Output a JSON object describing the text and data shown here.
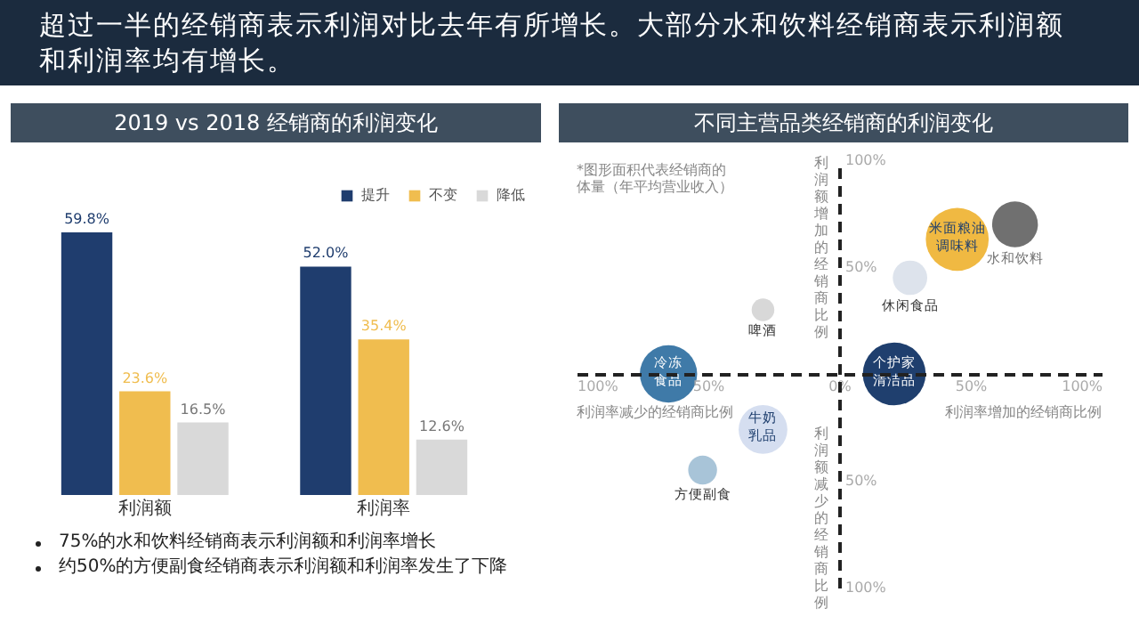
{
  "chart_data": [
    {
      "type": "other",
      "title": "超过一半的经销商表示利润对比去年有所增长。大部分水和饮料经销商表示利润额和利润率均有增长。"
    },
    {
      "type": "bar",
      "title": "2019 vs 2018 经销商的利润变化",
      "categories": [
        "利润额",
        "利润率"
      ],
      "legend": "top right",
      "tick_labels": "x",
      "series": [
        {
          "name": "提升",
          "color": "#1f3d6e",
          "values": [
            59.8,
            52.0
          ],
          "value_labels": [
            "59.8%",
            "52.0%"
          ]
        },
        {
          "name": "不变",
          "color": "#f0bd4f",
          "values": [
            23.6,
            35.4
          ],
          "value_labels": [
            "23.6%",
            "35.4%"
          ]
        },
        {
          "name": "降低",
          "color": "#d9d9d9",
          "values": [
            16.5,
            12.6
          ],
          "value_labels": [
            "16.5%",
            "12.6%"
          ]
        }
      ],
      "annotations": [
        "75%的水和饮料经销商表示利润额和利润率增长",
        "约50%的方便副食经销商表示利润额和利润率发生了下降"
      ]
    },
    {
      "type": "bubble",
      "title": "不同主营品类经销商的利润变化",
      "xlabel": "利润率增加的经销商比例",
      "ylabel": "利润额增加的经销商比例",
      "xlim": [
        -100,
        100
      ],
      "ylim": [
        -100,
        100
      ],
      "xticks": [
        {
          "value": -100,
          "label": "100%"
        },
        {
          "value": -50,
          "label": "50%"
        },
        {
          "value": 0,
          "label": "0%"
        },
        {
          "value": 50,
          "label": "50%"
        },
        {
          "value": 100,
          "label": "100%"
        }
      ],
      "yticks": [
        {
          "value": -100,
          "label": "100%"
        },
        {
          "value": -50,
          "label": "50%"
        },
        {
          "value": 50,
          "label": "50%"
        },
        {
          "value": 100,
          "label": "100%"
        }
      ],
      "series": [
        {
          "name": "水和饮料",
          "color": "#707070",
          "x": [
            67
          ],
          "values": [
            70
          ],
          "sizes": [
            0.53
          ]
        },
        {
          "name": "米面粮油调味料",
          "color": "#f0b942",
          "x": [
            45
          ],
          "values": [
            63
          ],
          "sizes": [
            1
          ]
        },
        {
          "name": "休闲食品",
          "color": "#dde3ec",
          "x": [
            27
          ],
          "values": [
            45
          ],
          "sizes": [
            0.3
          ]
        },
        {
          "name": "啤酒",
          "color": "#d8d8d8",
          "x": [
            -29
          ],
          "values": [
            30
          ],
          "sizes": [
            0.13
          ]
        },
        {
          "name": "冷冻食品",
          "color": "#3f7aa8",
          "x": [
            -65
          ],
          "values": [
            0
          ],
          "sizes": [
            0.83
          ]
        },
        {
          "name": "个护家清洁品",
          "color": "#1f3f6e",
          "x": [
            21
          ],
          "values": [
            0
          ],
          "sizes": [
            1
          ]
        },
        {
          "name": "牛奶乳品",
          "color": "#d5def0",
          "x": [
            -29
          ],
          "values": [
            -26
          ],
          "sizes": [
            0.6
          ]
        },
        {
          "name": "方便副食",
          "color": "#a8c4d8",
          "x": [
            -52
          ],
          "values": [
            -45
          ],
          "sizes": [
            0.21
          ]
        }
      ],
      "annotations": [
        "利润率减少的经销商比例",
        "利润额减少的经销商比例",
        "*图形面积代表经销商的体量（年平均营业收入）"
      ]
    }
  ]
}
